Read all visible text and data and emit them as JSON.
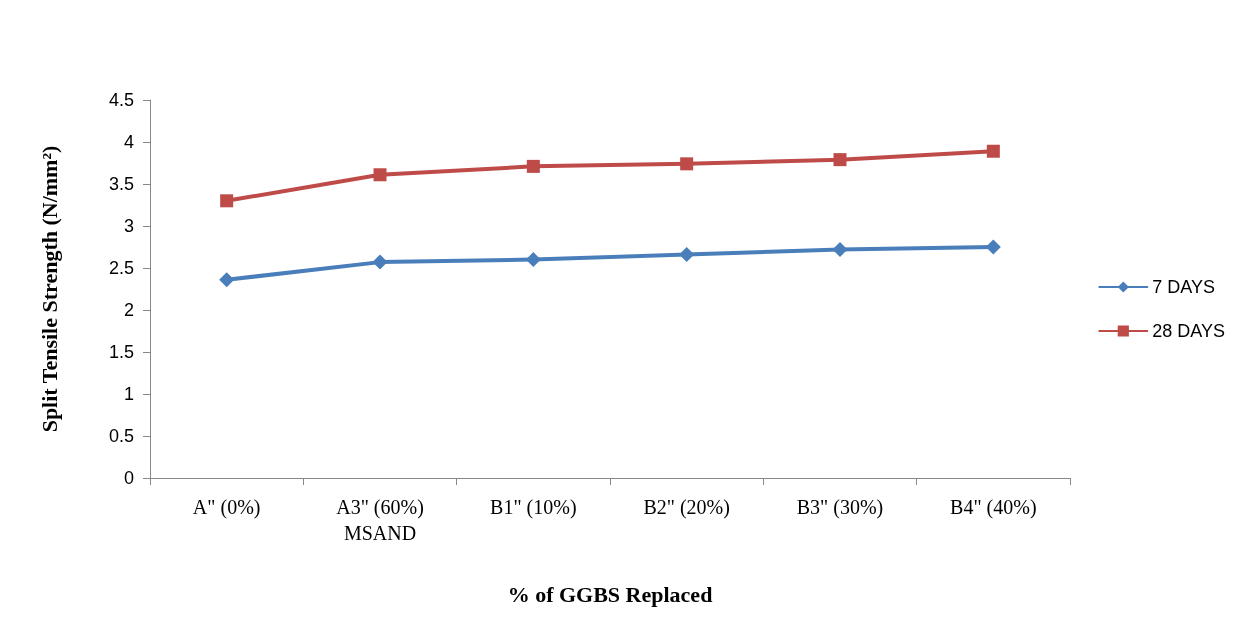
{
  "chart_data": {
    "type": "line",
    "xlabel": "% of GGBS Replaced",
    "ylabel": "Split Tensile Strength (N/mm²)",
    "categories": [
      "A\" (0%)",
      "A3\" (60%)\nMSAND",
      "B1\" (10%)",
      "B2\" (20%)",
      "B3\" (30%)",
      "B4\" (40%)"
    ],
    "series": [
      {
        "name": "7 DAYS",
        "color": "#4a7ebb",
        "marker": "diamond",
        "values": [
          2.36,
          2.57,
          2.6,
          2.66,
          2.72,
          2.75
        ]
      },
      {
        "name": "28 DAYS",
        "color": "#be4b48",
        "marker": "square",
        "values": [
          3.3,
          3.61,
          3.71,
          3.74,
          3.79,
          3.89
        ]
      }
    ],
    "ylim": [
      0,
      4.5
    ],
    "yticks": [
      0,
      0.5,
      1,
      1.5,
      2,
      2.5,
      3,
      3.5,
      4,
      4.5
    ],
    "grid": false,
    "legend": "right",
    "line_style": "solid"
  }
}
